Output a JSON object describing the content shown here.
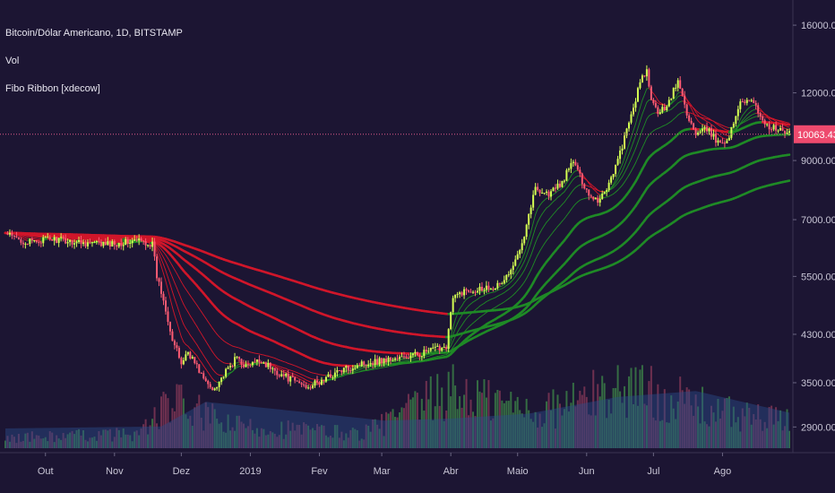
{
  "header": {
    "symbol_line": "Bitcoin/Dólar Americano, 1D, BITSTAMP",
    "volume_label": "Vol",
    "indicator_label": "Fibo Ribbon [xdecow]"
  },
  "price_tag": {
    "value": "10063.43",
    "price": 10063.43
  },
  "colors": {
    "background": "#1c1533",
    "axis_text": "#c9c6d6",
    "candle_up": "#d4ff52",
    "candle_down": "#ff5b73",
    "ribbon_red": "#d0162a",
    "ribbon_green": "#1f8a26",
    "volume_up": "#3d8a4a",
    "volume_down": "#8a3a5a",
    "volume_ma": "#2a4d8c",
    "price_line": "#e05a8a",
    "price_tag_bg": "#ee4a6e"
  },
  "chart_data": {
    "type": "candlestick",
    "title": "Bitcoin/Dólar Americano, 1D, BITSTAMP",
    "y_scale": "log",
    "ylim": [
      2600,
      16500
    ],
    "y_ticks": [
      "16000.00",
      "12000.00",
      "9000.00",
      "7000.00",
      "5500.00",
      "4300.00",
      "3500.00",
      "2900.00"
    ],
    "y_tick_values": [
      16000,
      12000,
      9000,
      7000,
      5500,
      4300,
      3500,
      2900
    ],
    "x_labels": [
      "Out",
      "Nov",
      "Dez",
      "2019",
      "Fev",
      "Mar",
      "Abr",
      "Maio",
      "Jun",
      "Jul",
      "Ago"
    ],
    "x_label_days": [
      18,
      49,
      79,
      110,
      141,
      169,
      200,
      230,
      261,
      291,
      322
    ],
    "n_days": 352,
    "close_anchors": [
      [
        0,
        6600
      ],
      [
        3,
        6500
      ],
      [
        10,
        6350
      ],
      [
        20,
        6450
      ],
      [
        35,
        6350
      ],
      [
        45,
        6300
      ],
      [
        60,
        6400
      ],
      [
        66,
        6300
      ],
      [
        68,
        5500
      ],
      [
        72,
        4800
      ],
      [
        75,
        4200
      ],
      [
        79,
        3800
      ],
      [
        82,
        4000
      ],
      [
        90,
        3500
      ],
      [
        93,
        3400
      ],
      [
        100,
        3700
      ],
      [
        104,
        3900
      ],
      [
        108,
        3750
      ],
      [
        115,
        3850
      ],
      [
        120,
        3700
      ],
      [
        128,
        3550
      ],
      [
        135,
        3450
      ],
      [
        141,
        3500
      ],
      [
        148,
        3650
      ],
      [
        160,
        3800
      ],
      [
        169,
        3850
      ],
      [
        180,
        3900
      ],
      [
        190,
        4000
      ],
      [
        198,
        4100
      ],
      [
        201,
        5000
      ],
      [
        205,
        5150
      ],
      [
        215,
        5250
      ],
      [
        222,
        5300
      ],
      [
        228,
        5700
      ],
      [
        233,
        6600
      ],
      [
        238,
        8000
      ],
      [
        244,
        7800
      ],
      [
        250,
        8200
      ],
      [
        255,
        9000
      ],
      [
        258,
        8400
      ],
      [
        262,
        7800
      ],
      [
        266,
        7600
      ],
      [
        270,
        8000
      ],
      [
        275,
        9000
      ],
      [
        280,
        10500
      ],
      [
        285,
        12500
      ],
      [
        288,
        13200
      ],
      [
        290,
        11500
      ],
      [
        294,
        11000
      ],
      [
        298,
        11600
      ],
      [
        302,
        12600
      ],
      [
        306,
        11000
      ],
      [
        310,
        10000
      ],
      [
        315,
        10300
      ],
      [
        320,
        9700
      ],
      [
        325,
        9900
      ],
      [
        330,
        11600
      ],
      [
        334,
        11700
      ],
      [
        338,
        11100
      ],
      [
        342,
        10400
      ],
      [
        346,
        10300
      ],
      [
        352,
        10063
      ]
    ],
    "volume_anchors": [
      [
        0,
        0.1
      ],
      [
        60,
        0.14
      ],
      [
        75,
        0.45
      ],
      [
        100,
        0.22
      ],
      [
        160,
        0.14
      ],
      [
        200,
        0.55
      ],
      [
        240,
        0.35
      ],
      [
        280,
        0.6
      ],
      [
        320,
        0.35
      ],
      [
        352,
        0.25
      ]
    ],
    "volume_ma_anchors": [
      [
        0,
        0.2
      ],
      [
        70,
        0.22
      ],
      [
        90,
        0.47
      ],
      [
        120,
        0.4
      ],
      [
        170,
        0.28
      ],
      [
        200,
        0.3
      ],
      [
        235,
        0.35
      ],
      [
        275,
        0.52
      ],
      [
        310,
        0.58
      ],
      [
        352,
        0.36
      ]
    ],
    "ribbon_lengths": [
      8,
      13,
      21,
      34,
      55,
      89,
      144,
      233
    ]
  }
}
